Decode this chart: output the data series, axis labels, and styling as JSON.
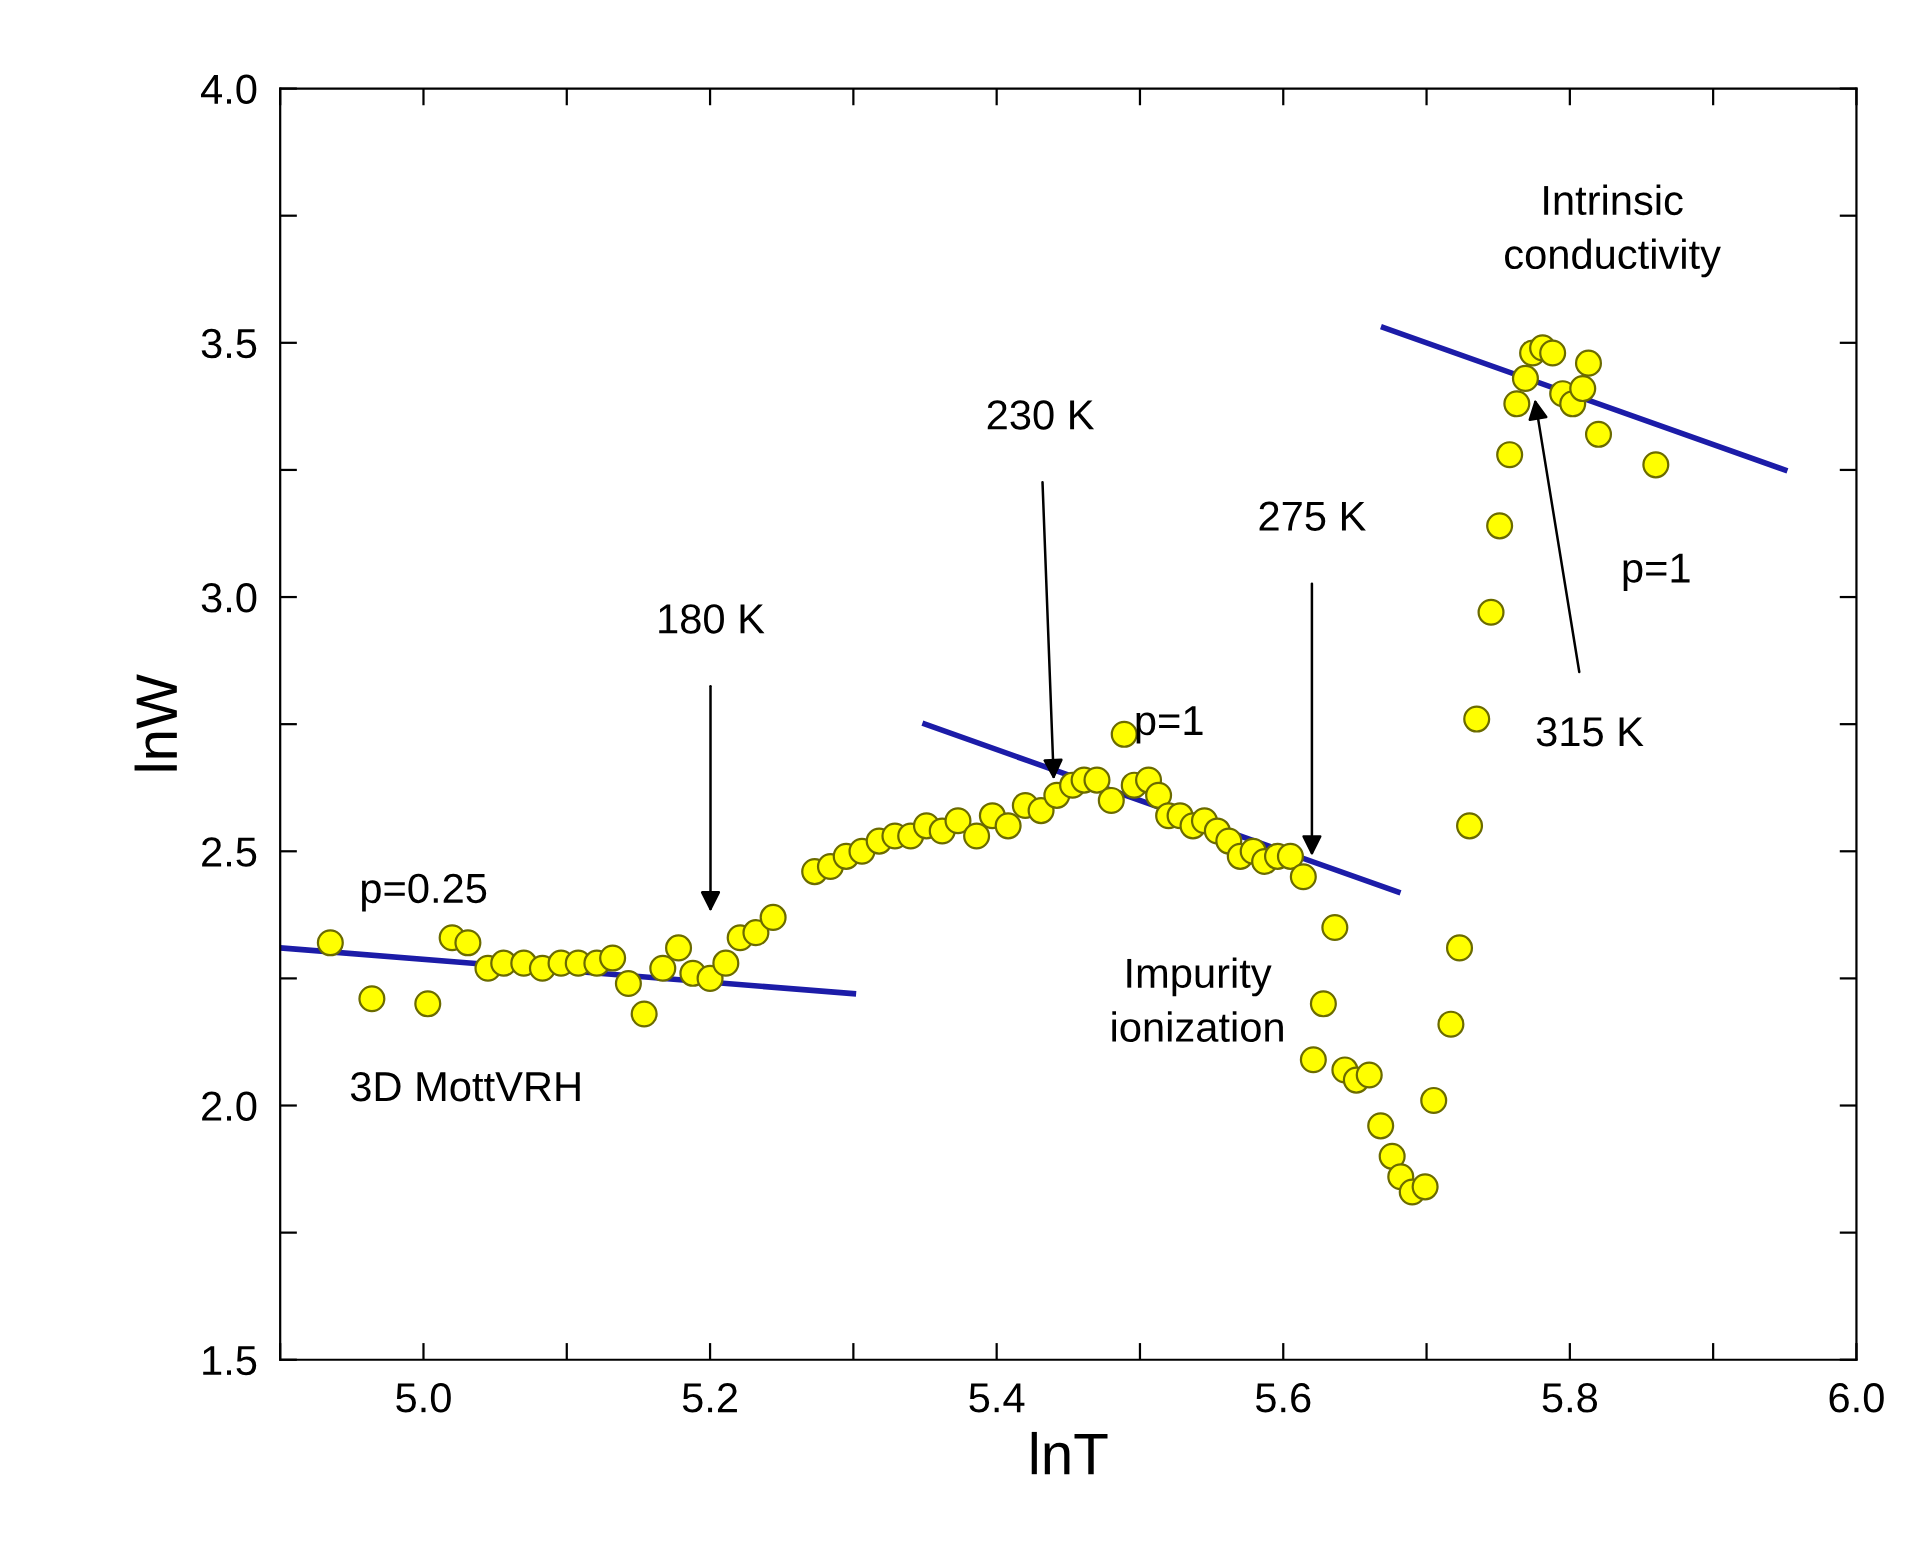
{
  "chart_data": {
    "type": "scatter",
    "xlabel": "lnT",
    "ylabel": "lnW",
    "xlim": [
      4.9,
      6.0
    ],
    "ylim": [
      1.5,
      4.0
    ],
    "xticks": [
      {
        "value": 4.9,
        "label": null
      },
      {
        "value": 5,
        "label": "5.0"
      },
      {
        "value": 5.1,
        "label": null
      },
      5.2,
      {
        "value": 5.3,
        "label": null
      },
      5.4,
      {
        "value": 5.5,
        "label": null
      },
      5.6,
      {
        "value": 5.7,
        "label": null
      },
      5.8,
      {
        "value": 5.9,
        "label": null
      },
      {
        "value": 6,
        "label": "6.0"
      }
    ],
    "yticks": [
      1.5,
      {
        "value": 1.75,
        "label": null
      },
      {
        "value": 2,
        "label": "2.0"
      },
      {
        "value": 2.25,
        "label": null
      },
      2.5,
      {
        "value": 2.75,
        "label": null
      },
      {
        "value": 3,
        "label": "3.0"
      },
      {
        "value": 3.25,
        "label": null
      },
      3.5,
      {
        "value": 3.75,
        "label": null
      },
      {
        "value": 4,
        "label": "4.0"
      }
    ],
    "grid": false,
    "marker": "circle",
    "series": [
      {
        "color": "#ffff00",
        "x": [
          4.935,
          4.964,
          5.003,
          5.02,
          5.031,
          5.045,
          5.056,
          5.07,
          5.083,
          5.096,
          5.108,
          5.121,
          5.132,
          5.143,
          5.154,
          5.167,
          5.178,
          5.188,
          5.2,
          5.211,
          5.221,
          5.232,
          5.244,
          5.273,
          5.284,
          5.295,
          5.306,
          5.318,
          5.329,
          5.34,
          5.351,
          5.362,
          5.373,
          5.386,
          5.397,
          5.408,
          5.42,
          5.431,
          5.442,
          5.453,
          5.461,
          5.47,
          5.48,
          5.489,
          5.496,
          5.506,
          5.513,
          5.52,
          5.528,
          5.537,
          5.545,
          5.554,
          5.562,
          5.57,
          5.579,
          5.587,
          5.596,
          5.605,
          5.614,
          5.621,
          5.628,
          5.636,
          5.643,
          5.651,
          5.66,
          5.668,
          5.676,
          5.682,
          5.69,
          5.699,
          5.705,
          5.717,
          5.723,
          5.73,
          5.735,
          5.745,
          5.751,
          5.758,
          5.763,
          5.769,
          5.774,
          5.781,
          5.788,
          5.795,
          5.802,
          5.809,
          5.813,
          5.82,
          5.86
        ],
        "values": [
          2.32,
          2.21,
          2.2,
          2.33,
          2.32,
          2.27,
          2.28,
          2.28,
          2.27,
          2.28,
          2.28,
          2.28,
          2.29,
          2.24,
          2.18,
          2.27,
          2.31,
          2.26,
          2.25,
          2.28,
          2.33,
          2.34,
          2.37,
          2.46,
          2.47,
          2.49,
          2.5,
          2.52,
          2.53,
          2.53,
          2.55,
          2.54,
          2.56,
          2.53,
          2.57,
          2.55,
          2.59,
          2.58,
          2.61,
          2.63,
          2.64,
          2.64,
          2.6,
          2.73,
          2.63,
          2.64,
          2.61,
          2.57,
          2.57,
          2.55,
          2.56,
          2.54,
          2.52,
          2.49,
          2.5,
          2.48,
          2.49,
          2.49,
          2.45,
          2.09,
          2.2,
          2.35,
          2.07,
          2.05,
          2.06,
          1.96,
          1.9,
          1.86,
          1.83,
          1.84,
          2.01,
          2.16,
          2.31,
          2.55,
          2.76,
          2.97,
          3.14,
          3.28,
          3.38,
          3.43,
          3.48,
          3.49,
          3.48,
          3.4,
          3.38,
          3.41,
          3.46,
          3.32,
          3.26
        ]
      },
      {
        "type": "line",
        "marker": "none",
        "color": "#1c1ca8",
        "x": [
          4.9,
          5.3
        ],
        "values": [
          2.31,
          2.22
        ]
      },
      {
        "type": "line",
        "marker": "none",
        "color": "#1c1ca8",
        "x": [
          5.35,
          5.68
        ],
        "values": [
          2.75,
          2.42
        ]
      },
      {
        "type": "line",
        "marker": "none",
        "color": "#1c1ca8",
        "x": [
          5.67,
          5.95
        ],
        "values": [
          3.53,
          3.25
        ]
      }
    ],
    "annotations": [
      "p=0.25",
      "3D MottVRH",
      "180 K",
      {
        "text": "230 K",
        "x": 5.44,
        "y": 2.63
      },
      "p=1",
      {
        "text": "275 K",
        "x": 5.62,
        "y": 2.48
      },
      "Impurity\nionization",
      "Intrinsic\nconductivity",
      "p=1",
      {
        "text": "315 K",
        "x": 5.775,
        "y": 3.4
      }
    ]
  }
}
